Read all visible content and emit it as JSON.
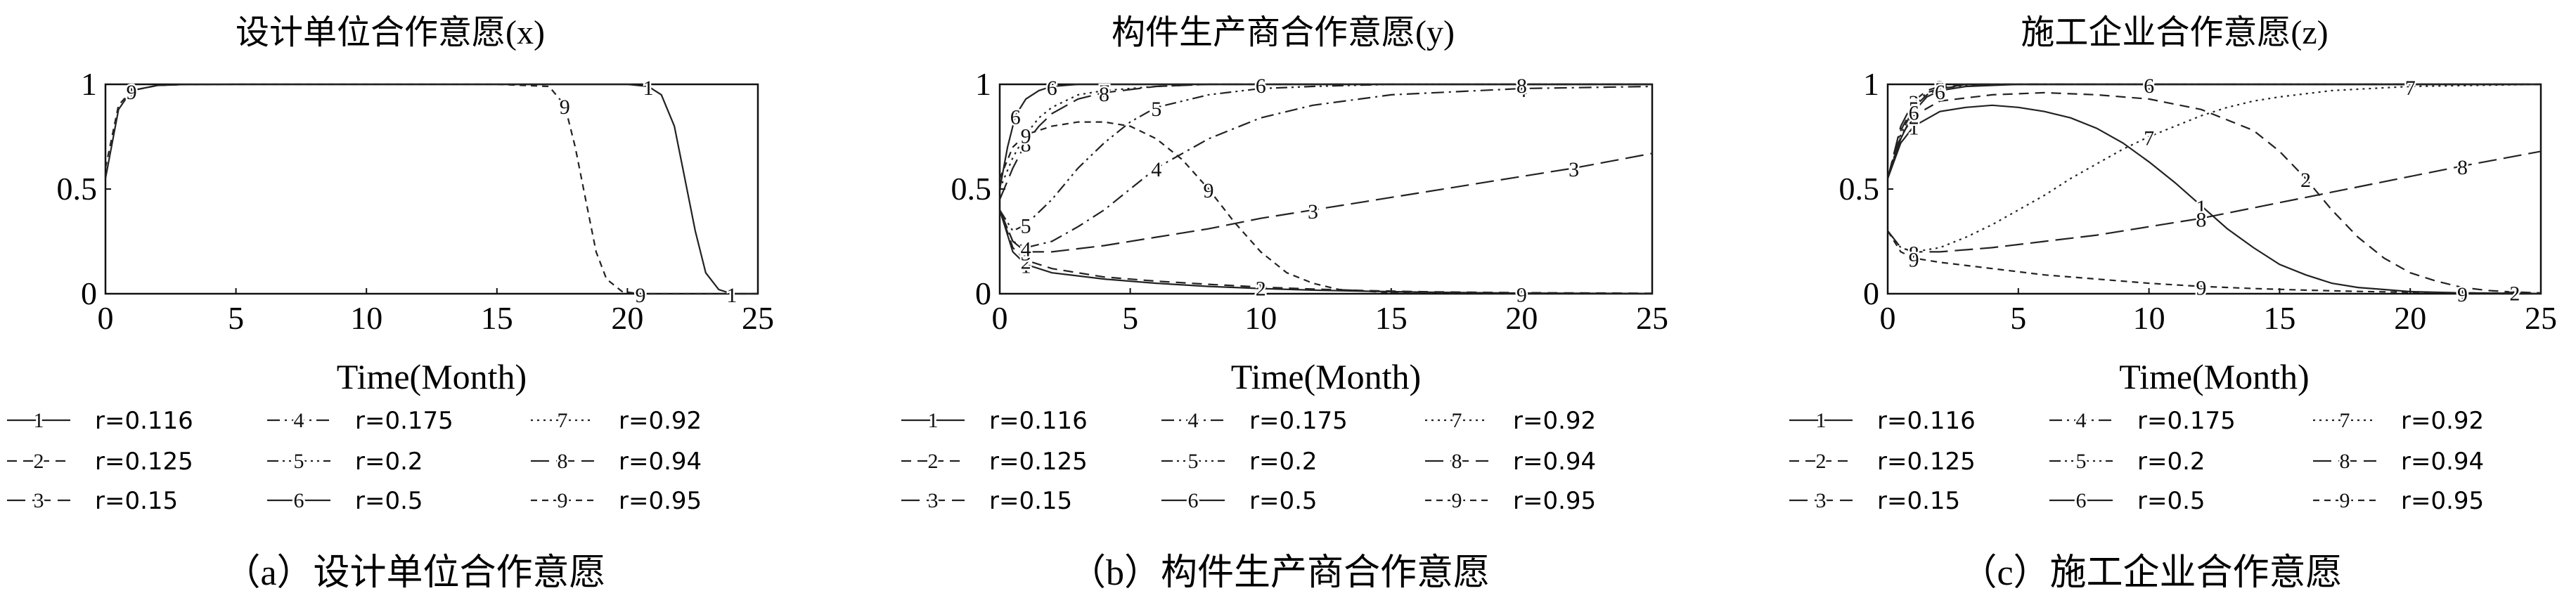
{
  "figure": {
    "legend": [
      {
        "num": "1",
        "label": "r=0.116",
        "dash": "solid"
      },
      {
        "num": "2",
        "label": "r=0.125",
        "dash": "dashed"
      },
      {
        "num": "3",
        "label": "r=0.15",
        "dash": "longdash"
      },
      {
        "num": "4",
        "label": "r=0.175",
        "dash": "dashdot"
      },
      {
        "num": "5",
        "label": "r=0.2",
        "dash": "dashdotdot"
      },
      {
        "num": "6",
        "label": "r=0.5",
        "dash": "solid"
      },
      {
        "num": "7",
        "label": "r=0.92",
        "dash": "dotted"
      },
      {
        "num": "8",
        "label": "r=0.94",
        "dash": "longdash"
      },
      {
        "num": "9",
        "label": "r=0.95",
        "dash": "shortdash"
      }
    ]
  },
  "chart_data": [
    {
      "type": "line",
      "title": "设计单位合作意愿(x)",
      "xlabel": "Time(Month)",
      "ylabel": "",
      "caption": "（a）设计单位合作意愿",
      "xlim": [
        0,
        25
      ],
      "ylim": [
        0,
        1
      ],
      "xticks": [
        "0",
        "5",
        "10",
        "15",
        "20",
        "25"
      ],
      "yticks": [
        "0",
        "0.5",
        "1"
      ],
      "series": [
        {
          "name": "1",
          "x": [
            0,
            0.5,
            1,
            2,
            3,
            5,
            10,
            15,
            20,
            20.8,
            21.3,
            21.8,
            22.2,
            22.6,
            23,
            23.5,
            24,
            25
          ],
          "y": [
            0.55,
            0.88,
            0.97,
            0.995,
            0.999,
            1,
            1,
            1,
            1,
            0.99,
            0.95,
            0.8,
            0.55,
            0.3,
            0.1,
            0.02,
            0,
            0
          ]
        },
        {
          "name": "9",
          "x": [
            0,
            0.5,
            1,
            2,
            3,
            5,
            10,
            15,
            17,
            17.6,
            18,
            18.4,
            18.8,
            19.2,
            19.8,
            20.5,
            25
          ],
          "y": [
            0.6,
            0.9,
            0.97,
            0.995,
            0.999,
            1,
            1,
            1,
            0.99,
            0.9,
            0.7,
            0.45,
            0.2,
            0.07,
            0.01,
            0,
            0
          ]
        }
      ]
    },
    {
      "type": "line",
      "title": "构件生产商合作意愿(y)",
      "xlabel": "Time(Month)",
      "ylabel": "",
      "caption": "（b）构件生产商合作意愿",
      "xlim": [
        0,
        25
      ],
      "ylim": [
        0,
        1
      ],
      "xticks": [
        "0",
        "5",
        "10",
        "15",
        "20",
        "25"
      ],
      "yticks": [
        "0",
        "0.5",
        "1"
      ],
      "series": [
        {
          "name": "1",
          "x": [
            0,
            0.5,
            1,
            2,
            4,
            6,
            8,
            10,
            12,
            14,
            16,
            18,
            20,
            25
          ],
          "y": [
            0.4,
            0.2,
            0.14,
            0.1,
            0.07,
            0.05,
            0.035,
            0.025,
            0.017,
            0.012,
            0.008,
            0.005,
            0.003,
            0.001
          ]
        },
        {
          "name": "2",
          "x": [
            0,
            0.5,
            1,
            2,
            4,
            6,
            8,
            10,
            12,
            14,
            16,
            18,
            20,
            25
          ],
          "y": [
            0.4,
            0.22,
            0.16,
            0.12,
            0.08,
            0.06,
            0.045,
            0.032,
            0.022,
            0.015,
            0.01,
            0.007,
            0.005,
            0.002
          ]
        },
        {
          "name": "3",
          "x": [
            0,
            0.5,
            1,
            2,
            4,
            6,
            8,
            10,
            12,
            14,
            16,
            18,
            20,
            22,
            25
          ],
          "y": [
            0.4,
            0.25,
            0.2,
            0.2,
            0.23,
            0.27,
            0.31,
            0.36,
            0.4,
            0.44,
            0.48,
            0.52,
            0.56,
            0.6,
            0.67
          ]
        },
        {
          "name": "4",
          "x": [
            0,
            0.5,
            1,
            2,
            3,
            4,
            5,
            6,
            8,
            10,
            12,
            15,
            20,
            25
          ],
          "y": [
            0.4,
            0.25,
            0.22,
            0.25,
            0.32,
            0.4,
            0.5,
            0.6,
            0.74,
            0.84,
            0.9,
            0.95,
            0.98,
            0.99
          ]
        },
        {
          "name": "5",
          "x": [
            0,
            0.5,
            1,
            2,
            3,
            4,
            5,
            6,
            8,
            10,
            12,
            15,
            20,
            25
          ],
          "y": [
            0.4,
            0.3,
            0.33,
            0.45,
            0.6,
            0.72,
            0.82,
            0.89,
            0.95,
            0.98,
            0.99,
            1,
            1,
            1
          ]
        },
        {
          "name": "6",
          "x": [
            0,
            0.3,
            0.6,
            1,
            1.5,
            2,
            3,
            5,
            10,
            25
          ],
          "y": [
            0.5,
            0.7,
            0.85,
            0.93,
            0.97,
            0.99,
            1,
            1,
            1,
            1
          ]
        },
        {
          "name": "7",
          "x": [
            0,
            0.5,
            1,
            1.5,
            2,
            3,
            4,
            6,
            8,
            12,
            20,
            25
          ],
          "y": [
            0.5,
            0.65,
            0.76,
            0.84,
            0.89,
            0.95,
            0.97,
            0.99,
            1,
            1,
            1,
            1
          ]
        },
        {
          "name": "8",
          "x": [
            0,
            0.5,
            1,
            1.5,
            2,
            3,
            4,
            6,
            8,
            12,
            20,
            25
          ],
          "y": [
            0.45,
            0.6,
            0.72,
            0.8,
            0.86,
            0.93,
            0.96,
            0.99,
            1,
            1,
            1,
            1
          ]
        },
        {
          "name": "9",
          "x": [
            0,
            0.5,
            1,
            2,
            3,
            4,
            5,
            6,
            7,
            8,
            9,
            10,
            11,
            12,
            13,
            15,
            20,
            25
          ],
          "y": [
            0.55,
            0.7,
            0.76,
            0.8,
            0.82,
            0.82,
            0.8,
            0.74,
            0.64,
            0.5,
            0.34,
            0.2,
            0.1,
            0.05,
            0.02,
            0.005,
            0.001,
            0
          ]
        }
      ]
    },
    {
      "type": "line",
      "title": "施工企业合作意愿(z)",
      "xlabel": "Time(Month)",
      "ylabel": "",
      "caption": "（c）施工企业合作意愿",
      "xlim": [
        0,
        25
      ],
      "ylim": [
        0,
        1
      ],
      "xticks": [
        "0",
        "5",
        "10",
        "15",
        "20",
        "25"
      ],
      "yticks": [
        "0",
        "0.5",
        "1"
      ],
      "series": [
        {
          "name": "1",
          "x": [
            0,
            0.5,
            1,
            2,
            3,
            4,
            5,
            6,
            7,
            8,
            9,
            10,
            11,
            12,
            13,
            14,
            15,
            16,
            17,
            18,
            19,
            20,
            22,
            25
          ],
          "y": [
            0.55,
            0.72,
            0.8,
            0.87,
            0.89,
            0.9,
            0.89,
            0.87,
            0.84,
            0.79,
            0.72,
            0.63,
            0.53,
            0.42,
            0.31,
            0.22,
            0.14,
            0.09,
            0.05,
            0.03,
            0.02,
            0.01,
            0.004,
            0.001
          ]
        },
        {
          "name": "2",
          "x": [
            0,
            0.5,
            1,
            2,
            4,
            6,
            8,
            10,
            12,
            14,
            15,
            16,
            17,
            18,
            19,
            20,
            21,
            22,
            23,
            24,
            25
          ],
          "y": [
            0.55,
            0.75,
            0.85,
            0.92,
            0.95,
            0.96,
            0.95,
            0.93,
            0.88,
            0.78,
            0.68,
            0.55,
            0.4,
            0.27,
            0.17,
            0.1,
            0.06,
            0.03,
            0.015,
            0.008,
            0.004
          ]
        },
        {
          "name": "3",
          "x": [
            0,
            0.5,
            1,
            1.5,
            2,
            3,
            5,
            10,
            25
          ],
          "y": [
            0.55,
            0.8,
            0.92,
            0.97,
            0.99,
            1,
            1,
            1,
            1
          ]
        },
        {
          "name": "4",
          "x": [
            0,
            0.5,
            1,
            1.5,
            2,
            3,
            5,
            10,
            25
          ],
          "y": [
            0.55,
            0.78,
            0.9,
            0.96,
            0.98,
            1,
            1,
            1,
            1
          ]
        },
        {
          "name": "5",
          "x": [
            0,
            0.5,
            1,
            1.5,
            2,
            3,
            5,
            10,
            25
          ],
          "y": [
            0.55,
            0.76,
            0.89,
            0.95,
            0.98,
            0.995,
            1,
            1,
            1
          ]
        },
        {
          "name": "6",
          "x": [
            0,
            0.5,
            1,
            1.5,
            2,
            3,
            5,
            10,
            25
          ],
          "y": [
            0.55,
            0.74,
            0.87,
            0.94,
            0.97,
            0.99,
            1,
            1,
            1
          ]
        },
        {
          "name": "7",
          "x": [
            0,
            0.5,
            1,
            2,
            3,
            4,
            5,
            6,
            7,
            8,
            9,
            10,
            11,
            12,
            13,
            14,
            15,
            17,
            20,
            25
          ],
          "y": [
            0.3,
            0.22,
            0.2,
            0.22,
            0.27,
            0.33,
            0.4,
            0.47,
            0.55,
            0.62,
            0.69,
            0.75,
            0.8,
            0.85,
            0.89,
            0.92,
            0.94,
            0.97,
            0.99,
            1
          ]
        },
        {
          "name": "8",
          "x": [
            0,
            0.5,
            1,
            2,
            4,
            6,
            8,
            10,
            12,
            14,
            16,
            18,
            20,
            22,
            25
          ],
          "y": [
            0.3,
            0.22,
            0.2,
            0.2,
            0.22,
            0.25,
            0.28,
            0.32,
            0.36,
            0.41,
            0.46,
            0.51,
            0.56,
            0.61,
            0.68
          ]
        },
        {
          "name": "9",
          "x": [
            0,
            0.5,
            1,
            2,
            4,
            6,
            8,
            10,
            12,
            14,
            16,
            18,
            20,
            22,
            25
          ],
          "y": [
            0.3,
            0.2,
            0.17,
            0.15,
            0.12,
            0.09,
            0.07,
            0.05,
            0.035,
            0.025,
            0.017,
            0.011,
            0.007,
            0.004,
            0.002
          ]
        }
      ]
    }
  ]
}
